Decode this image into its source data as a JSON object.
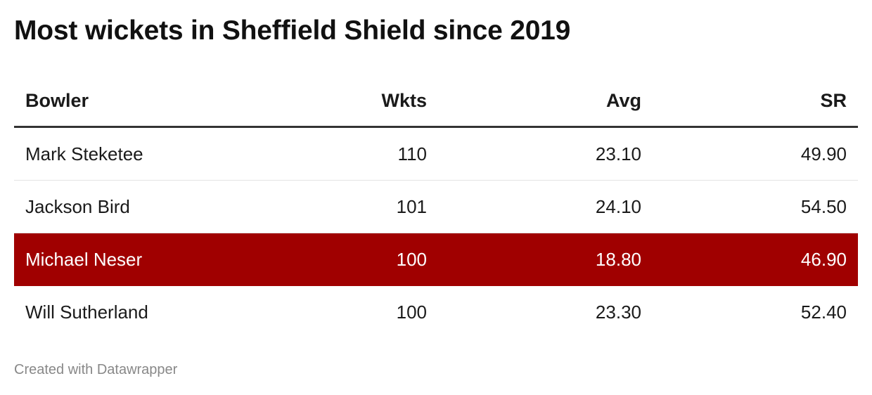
{
  "title": "Most wickets in Sheffield Shield since 2019",
  "columns": [
    "Bowler",
    "Wkts",
    "Avg",
    "SR"
  ],
  "rows": [
    {
      "bowler": "Mark Steketee",
      "wkts": "110",
      "avg": "23.10",
      "sr": "49.90",
      "highlighted": false
    },
    {
      "bowler": "Jackson Bird",
      "wkts": "101",
      "avg": "24.10",
      "sr": "54.50",
      "highlighted": false
    },
    {
      "bowler": "Michael Neser",
      "wkts": "100",
      "avg": "18.80",
      "sr": "46.90",
      "highlighted": true
    },
    {
      "bowler": "Will Sutherland",
      "wkts": "100",
      "avg": "23.30",
      "sr": "52.40",
      "highlighted": false
    }
  ],
  "highlight_color": "#a00000",
  "footer": "Created with Datawrapper",
  "chart_data": {
    "type": "table",
    "title": "Most wickets in Sheffield Shield since 2019",
    "columns": [
      "Bowler",
      "Wkts",
      "Avg",
      "SR"
    ],
    "rows": [
      [
        "Mark Steketee",
        110,
        23.1,
        49.9
      ],
      [
        "Jackson Bird",
        101,
        24.1,
        54.5
      ],
      [
        "Michael Neser",
        100,
        18.8,
        46.9
      ],
      [
        "Will Sutherland",
        100,
        23.3,
        52.4
      ]
    ],
    "highlighted_row": "Michael Neser"
  }
}
